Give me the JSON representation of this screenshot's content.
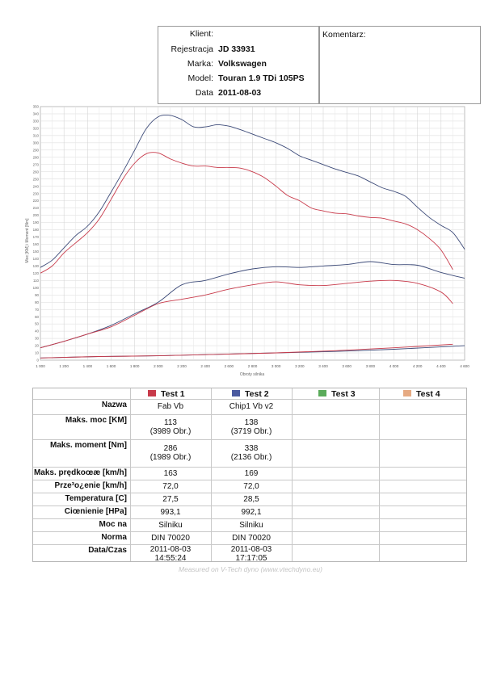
{
  "header": {
    "fields": [
      {
        "label": "Klient:",
        "value": ""
      },
      {
        "label": "Rejestracja",
        "value": "JD 33931"
      },
      {
        "label": "Marka:",
        "value": "Volkswagen"
      },
      {
        "label": "Model:",
        "value": "Touran 1.9 TDi 105PS"
      },
      {
        "label": "Data",
        "value": "2011-08-03"
      }
    ],
    "comment_label": "Komentarz:"
  },
  "chart_data": {
    "type": "line",
    "ylabel": "Moc [KM] i Moment [Nm]",
    "xlabel": "Obroty silnika",
    "xlim": [
      1000,
      4600
    ],
    "ylim": [
      0,
      350
    ],
    "grid": true,
    "y_ticks": [
      "0",
      "10",
      "20",
      "30",
      "40",
      "50",
      "60",
      "70",
      "80",
      "90",
      "100",
      "110",
      "120",
      "130",
      "140",
      "150",
      "160",
      "170",
      "180",
      "190",
      "200",
      "210",
      "220",
      "230",
      "240",
      "250",
      "260",
      "270",
      "280",
      "290",
      "300",
      "310",
      "320",
      "330",
      "340",
      "350"
    ],
    "x_ticks": [
      "1 000",
      "1 200",
      "1 400",
      "1 600",
      "1 800",
      "2 000",
      "2 200",
      "2 400",
      "2 600",
      "2 800",
      "3 000",
      "3 200",
      "3 400",
      "3 600",
      "3 800",
      "4 000",
      "4 200",
      "4 400",
      "4 600"
    ],
    "colors": {
      "test1": "#c83a4a",
      "test2": "#3c4a78"
    },
    "series": [
      {
        "test": 2,
        "kind": "torque",
        "color": "#3c4a78",
        "x": [
          1000,
          1100,
          1200,
          1300,
          1400,
          1500,
          1600,
          1700,
          1800,
          1900,
          2000,
          2100,
          2200,
          2300,
          2400,
          2500,
          2600,
          2700,
          2800,
          2900,
          3000,
          3100,
          3200,
          3300,
          3400,
          3500,
          3600,
          3700,
          3800,
          3900,
          4000,
          4100,
          4200,
          4300,
          4400,
          4500,
          4600
        ],
        "y": [
          128,
          138,
          155,
          172,
          185,
          205,
          232,
          260,
          290,
          320,
          336,
          338,
          332,
          322,
          322,
          325,
          323,
          318,
          312,
          306,
          300,
          292,
          282,
          276,
          270,
          264,
          259,
          254,
          246,
          238,
          233,
          226,
          211,
          197,
          186,
          176,
          153
        ]
      },
      {
        "test": 1,
        "kind": "torque",
        "color": "#c83a4a",
        "x": [
          1000,
          1100,
          1200,
          1300,
          1400,
          1500,
          1600,
          1700,
          1800,
          1900,
          2000,
          2100,
          2200,
          2300,
          2400,
          2500,
          2600,
          2700,
          2800,
          2900,
          3000,
          3100,
          3200,
          3300,
          3400,
          3500,
          3600,
          3700,
          3800,
          3900,
          4000,
          4100,
          4200,
          4300,
          4400,
          4500
        ],
        "y": [
          120,
          130,
          148,
          162,
          176,
          195,
          222,
          250,
          272,
          285,
          286,
          278,
          272,
          268,
          268,
          266,
          266,
          265,
          260,
          252,
          240,
          227,
          220,
          210,
          206,
          203,
          202,
          199,
          197,
          196,
          192,
          188,
          180,
          168,
          152,
          125
        ]
      },
      {
        "test": 2,
        "kind": "power",
        "color": "#3c4a78",
        "x": [
          1000,
          1200,
          1400,
          1600,
          1800,
          2000,
          2200,
          2400,
          2600,
          2800,
          3000,
          3200,
          3400,
          3600,
          3800,
          4000,
          4200,
          4400,
          4600
        ],
        "y": [
          17,
          26,
          36,
          48,
          64,
          80,
          104,
          110,
          119,
          126,
          129,
          128,
          130,
          132,
          136,
          132,
          131,
          121,
          113
        ]
      },
      {
        "test": 1,
        "kind": "power",
        "color": "#c83a4a",
        "x": [
          1000,
          1200,
          1400,
          1600,
          1800,
          2000,
          2200,
          2400,
          2600,
          2800,
          3000,
          3200,
          3400,
          3600,
          3800,
          4000,
          4200,
          4400,
          4500
        ],
        "y": [
          17,
          26,
          36,
          46,
          62,
          78,
          84,
          90,
          98,
          104,
          108,
          104,
          103,
          106,
          109,
          110,
          106,
          94,
          78
        ]
      },
      {
        "test": 2,
        "kind": "loss",
        "color": "#3c4a78",
        "x": [
          1000,
          1500,
          2000,
          2500,
          3000,
          3500,
          4000,
          4600
        ],
        "y": [
          3,
          5,
          6,
          8,
          10,
          12,
          15,
          20
        ]
      },
      {
        "test": 1,
        "kind": "loss",
        "color": "#c83a4a",
        "x": [
          1000,
          1500,
          2000,
          2500,
          3000,
          3500,
          4000,
          4500
        ],
        "y": [
          3,
          5,
          6,
          8,
          10,
          13,
          17,
          22
        ]
      }
    ]
  },
  "table": {
    "tests": [
      {
        "label": "Test 1",
        "color": "#c83a4a"
      },
      {
        "label": "Test 2",
        "color": "#4a5aa0"
      },
      {
        "label": "Test 3",
        "color": "#5aab5a"
      },
      {
        "label": "Test 4",
        "color": "#e6aa82"
      }
    ],
    "rows": [
      {
        "label": "Nazwa",
        "t1": [
          "Fab Vb"
        ],
        "t2": [
          "Chip1 Vb v2"
        ]
      },
      {
        "label": "Maks. moc [KM]",
        "t1": [
          "113",
          "(3989 Obr.)"
        ],
        "t2": [
          "138",
          "(3719 Obr.)"
        ]
      },
      {
        "label": "Maks. moment [Nm]",
        "t1": [
          "286",
          "(1989 Obr.)"
        ],
        "t2": [
          "338",
          "(2136 Obr.)"
        ]
      },
      {
        "label": "Maks. prędkoœæ [km/h]",
        "t1": [
          "163"
        ],
        "t2": [
          "169"
        ]
      },
      {
        "label": "Prze³o¿enie [km/h]",
        "t1": [
          "72,0"
        ],
        "t2": [
          "72,0"
        ]
      },
      {
        "label": "Temperatura [C]",
        "t1": [
          "27,5"
        ],
        "t2": [
          "28,5"
        ]
      },
      {
        "label": "Ciœnienie [HPa]",
        "t1": [
          "993,1"
        ],
        "t2": [
          "992,1"
        ]
      },
      {
        "label": "Moc na",
        "t1": [
          "Silniku"
        ],
        "t2": [
          "Silniku"
        ]
      },
      {
        "label": "Norma",
        "t1": [
          "DIN 70020"
        ],
        "t2": [
          "DIN 70020"
        ]
      },
      {
        "label": "Data/Czas",
        "t1": [
          "2011-08-03",
          "14:55:24"
        ],
        "t2": [
          "2011-08-03",
          "17:17:05"
        ]
      }
    ]
  },
  "footer": "Measured on V-Tech dyno (www.vtechdyno.eu)"
}
